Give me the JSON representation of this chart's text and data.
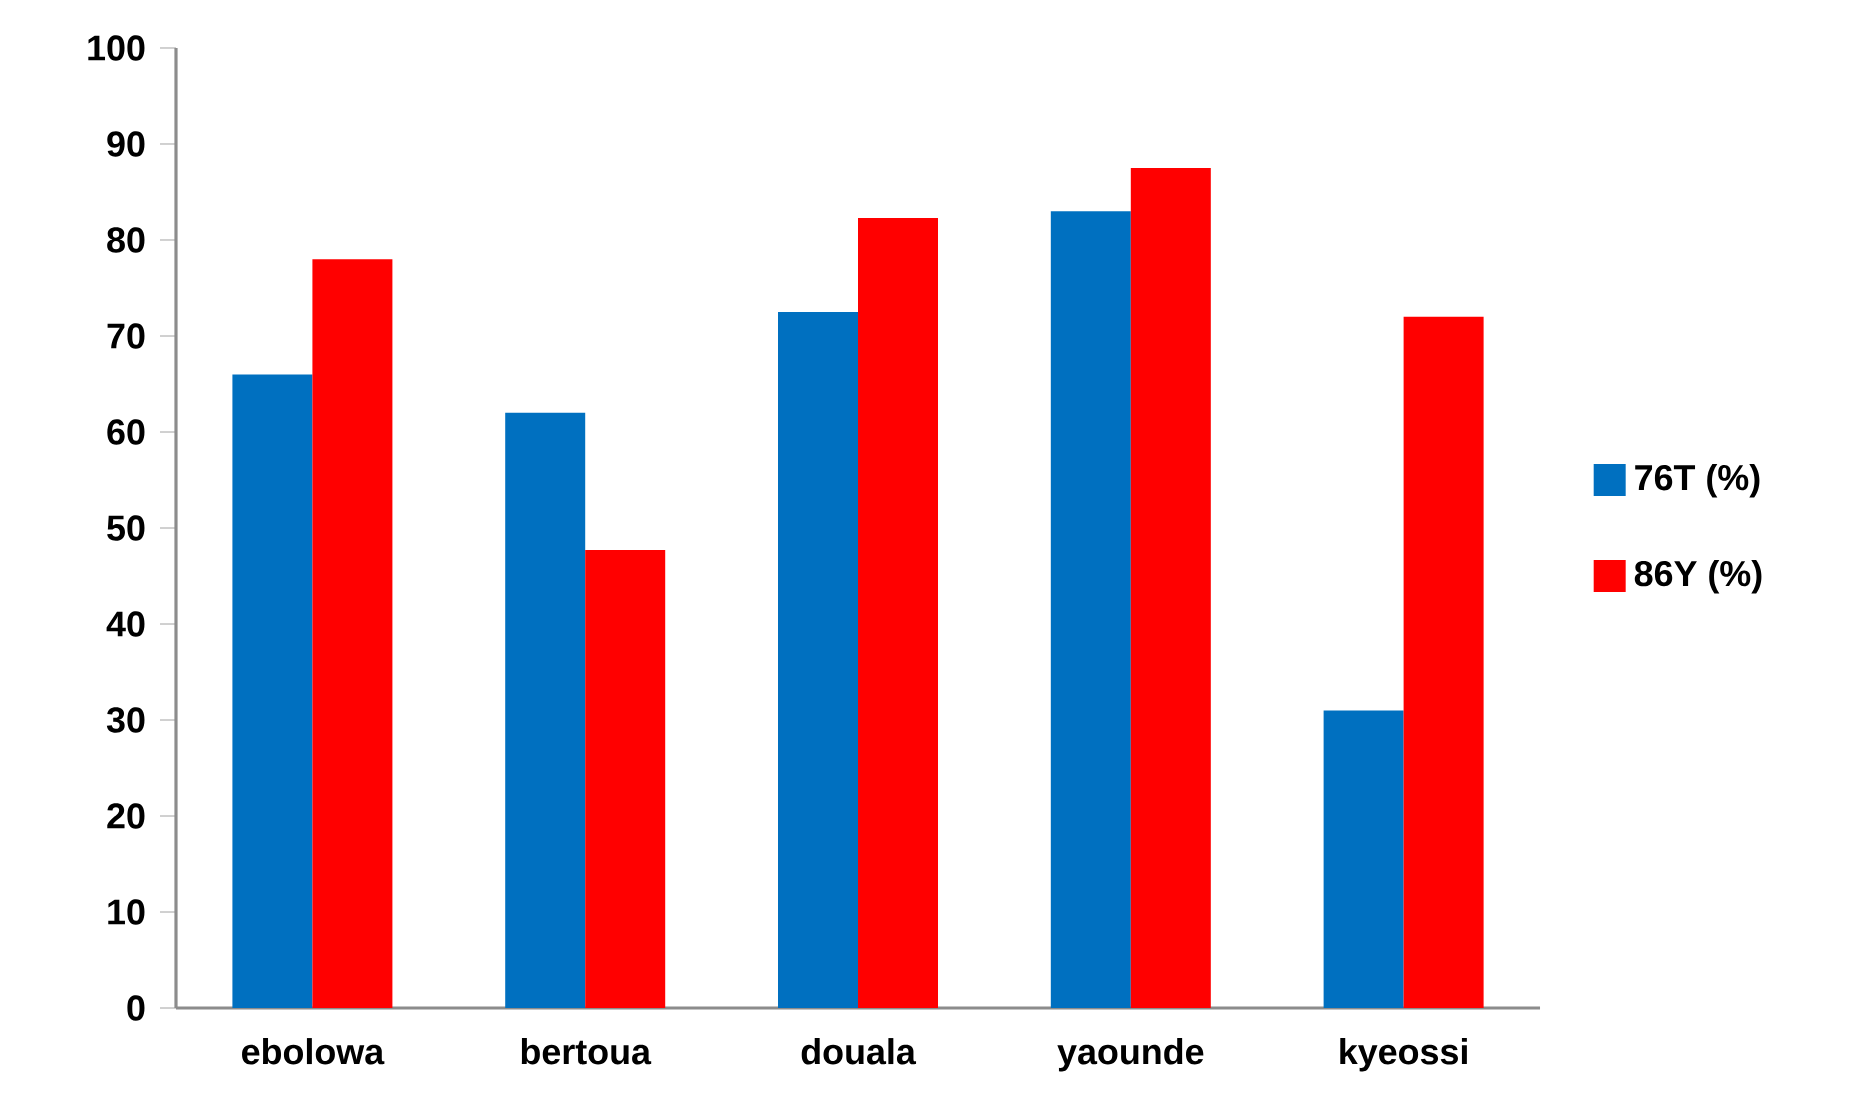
{
  "chart_data": {
    "type": "bar",
    "categories": [
      "ebolowa",
      "bertoua",
      "douala",
      "yaounde",
      "kyeossi"
    ],
    "series": [
      {
        "name": "76T (%)",
        "color": "#0070c0",
        "values": [
          66,
          62,
          72.5,
          83,
          31
        ]
      },
      {
        "name": "86Y (%)",
        "color": "#ff0000",
        "values": [
          78,
          47.7,
          82.3,
          87.5,
          72
        ]
      }
    ],
    "ylim": [
      0,
      100
    ],
    "yticks": [
      0,
      10,
      20,
      30,
      40,
      50,
      60,
      70,
      80,
      90,
      100
    ],
    "grid": false,
    "legend": "right"
  }
}
